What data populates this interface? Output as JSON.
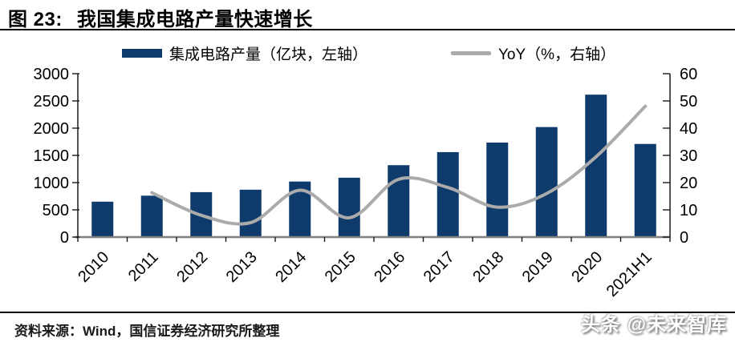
{
  "header": {
    "figure_label": "图 23:",
    "title": "我国集成电路产量快速增长"
  },
  "legend": [
    {
      "label": "集成电路产量（亿块，左轴）",
      "type": "bar",
      "color": "#0E3A6C"
    },
    {
      "label": "YoY（%，右轴）",
      "type": "line",
      "color": "#ABABAB"
    }
  ],
  "footer": {
    "source": "资料来源：Wind，国信证券经济研究所整理"
  },
  "watermark": "头条 @未来智库",
  "colors": {
    "bar": "#0E3A6C",
    "line": "#ABABAB",
    "axis": "#1a1a1a",
    "baseline": "#7f7f7f",
    "text": "#000000"
  },
  "chart_data": {
    "type": "bar",
    "subtype": "bar+line combo, dual axis",
    "title": "我国集成电路产量快速增长",
    "categories": [
      "2010",
      "2011",
      "2012",
      "2013",
      "2014",
      "2015",
      "2016",
      "2017",
      "2018",
      "2019",
      "2020",
      "2021H1"
    ],
    "series": [
      {
        "name": "集成电路产量（亿块，左轴）",
        "type": "bar",
        "axis": "left",
        "color": "#0E3A6C",
        "values": [
          650,
          760,
          825,
          870,
          1020,
          1090,
          1320,
          1560,
          1735,
          2020,
          2615,
          1710
        ]
      },
      {
        "name": "YoY（%，右轴）",
        "type": "line",
        "axis": "right",
        "color": "#ABABAB",
        "smooth": true,
        "values": [
          null,
          16.3,
          8.0,
          5.3,
          17.2,
          7.1,
          21.2,
          18.2,
          11.0,
          16.0,
          29.5,
          48.1
        ]
      }
    ],
    "left_axis": {
      "min": 0,
      "max": 3000,
      "step": 500,
      "ticks": [
        0,
        500,
        1000,
        1500,
        2000,
        2500,
        3000
      ]
    },
    "right_axis": {
      "min": 0,
      "max": 60,
      "step": 10,
      "ticks": [
        0,
        10,
        20,
        30,
        40,
        50,
        60
      ]
    },
    "grid": false,
    "legend_position": "top"
  }
}
